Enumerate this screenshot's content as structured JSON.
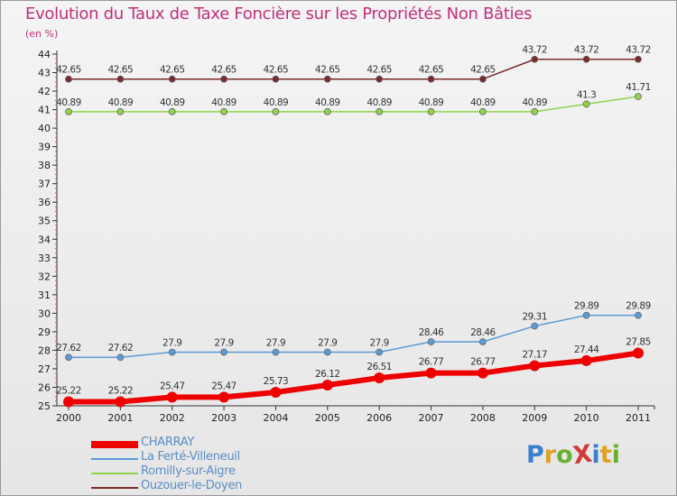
{
  "title": "Evolution du Taux de Taxe Foncière sur les Propriétés Non Bâties",
  "unit_label": "(en %)",
  "logo_text": "ProXiti",
  "logo_colors": [
    "#3a7fd0",
    "#e0a020",
    "#6ab030",
    "#d03a3a",
    "#3a7fd0",
    "#e0a020",
    "#6ab030"
  ],
  "chart_data": {
    "type": "line",
    "x": [
      "2000",
      "2001",
      "2002",
      "2003",
      "2004",
      "2005",
      "2006",
      "2007",
      "2008",
      "2009",
      "2010",
      "2011"
    ],
    "ylim": [
      25,
      44
    ],
    "yticks": [
      25,
      26,
      27,
      28,
      29,
      30,
      31,
      32,
      33,
      34,
      35,
      36,
      37,
      38,
      39,
      40,
      41,
      42,
      43,
      44
    ],
    "grid": false,
    "legend_position": "bottom-left",
    "series": [
      {
        "name": "CHARRAY",
        "color": "#ee0000",
        "values": [
          25.22,
          25.22,
          25.47,
          25.47,
          25.73,
          26.12,
          26.51,
          26.77,
          26.77,
          27.17,
          27.44,
          27.85
        ],
        "labels": [
          "25.22",
          "25.22",
          "25.47",
          "25.47",
          "25.73",
          "26.12",
          "26.51",
          "26.77",
          "26.77",
          "27.17",
          "27.44",
          "27.85"
        ]
      },
      {
        "name": "La Ferté-Villeneuil",
        "color": "#5b9bd5",
        "values": [
          27.62,
          27.62,
          27.9,
          27.9,
          27.9,
          27.9,
          27.9,
          28.46,
          28.46,
          29.31,
          29.89,
          29.89
        ],
        "labels": [
          "27.62",
          "27.62",
          "27.9",
          "27.9",
          "27.9",
          "27.9",
          "27.9",
          "28.46",
          "28.46",
          "29.31",
          "29.89",
          "29.89"
        ]
      },
      {
        "name": "Romilly-sur-Aigre",
        "color": "#8fd44a",
        "values": [
          40.89,
          40.89,
          40.89,
          40.89,
          40.89,
          40.89,
          40.89,
          40.89,
          40.89,
          40.89,
          41.3,
          41.71
        ],
        "labels": [
          "40.89",
          "40.89",
          "40.89",
          "40.89",
          "40.89",
          "40.89",
          "40.89",
          "40.89",
          "40.89",
          "40.89",
          "41.3",
          "41.71"
        ]
      },
      {
        "name": "Ouzouer-le-Doyen",
        "color": "#7a2a2a",
        "values": [
          42.65,
          42.65,
          42.65,
          42.65,
          42.65,
          42.65,
          42.65,
          42.65,
          42.65,
          43.72,
          43.72,
          43.72
        ],
        "labels": [
          "42.65",
          "42.65",
          "42.65",
          "42.65",
          "42.65",
          "42.65",
          "42.65",
          "42.65",
          "42.65",
          "43.72",
          "43.72",
          "43.72"
        ]
      }
    ]
  }
}
